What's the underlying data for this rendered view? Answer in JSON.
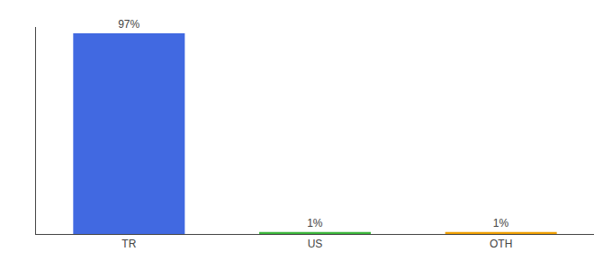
{
  "chart_data": {
    "type": "bar",
    "categories": [
      "TR",
      "US",
      "OTH"
    ],
    "values": [
      97,
      1,
      1
    ],
    "value_labels": [
      "97%",
      "1%",
      "1%"
    ],
    "colors": [
      "#4169e1",
      "#3cb83c",
      "#f0a000"
    ],
    "ylim": [
      0,
      100
    ],
    "data_labels": true,
    "grid": false,
    "tick_labels": "x"
  }
}
